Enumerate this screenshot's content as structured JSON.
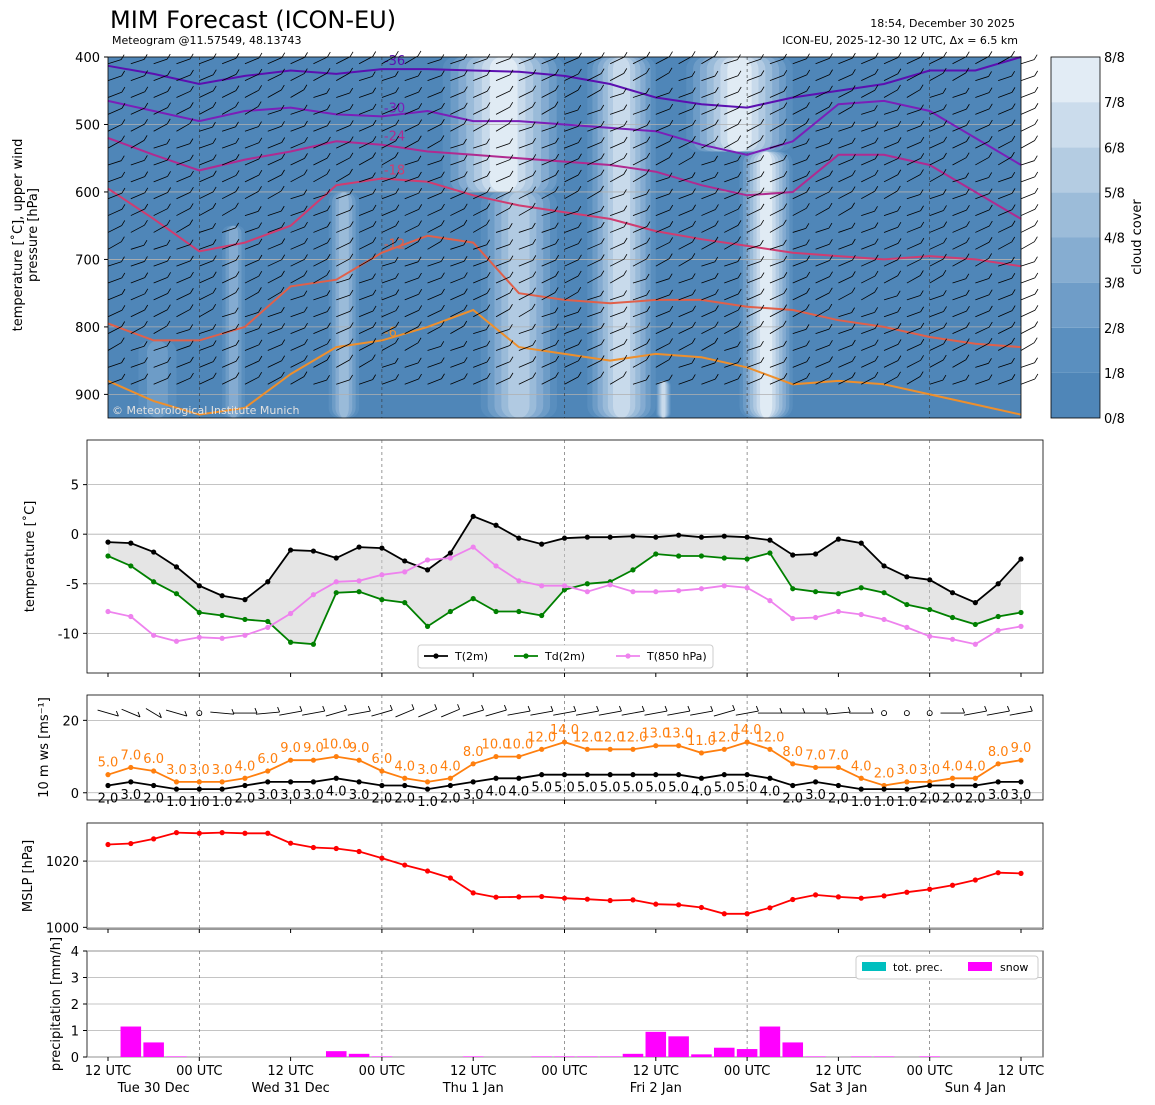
{
  "header": {
    "title": "MIM Forecast (ICON-EU)",
    "subtitle": "Meteogram @11.57549, 48.13743",
    "run_time": "18:54, December 30 2025",
    "run_info": "ICON-EU, 2025-12-30 12 UTC, Δx = 6.5 km",
    "copyright": "© Meteorological Institute Munich"
  },
  "x_axis": {
    "tick_labels": [
      "12 UTC",
      "00 UTC",
      "12 UTC",
      "00 UTC",
      "12 UTC",
      "00 UTC",
      "12 UTC",
      "00 UTC",
      "12 UTC",
      "00 UTC",
      "12 UTC"
    ],
    "tick_hours": [
      0,
      12,
      24,
      36,
      48,
      60,
      72,
      84,
      96,
      108,
      120
    ],
    "day_labels": [
      "Tue 30 Dec",
      "Wed 31 Dec",
      "Thu 1 Jan",
      "Fri 2 Jan",
      "Sat 3 Jan",
      "Sun 4 Jan"
    ],
    "day_hours": [
      6,
      24,
      48,
      72,
      96,
      114
    ]
  },
  "colors": {
    "cloud_base": "#4f86b8",
    "t2m": "#000000",
    "td2m": "#008000",
    "t850": "#ee82ee",
    "gust": "#ff7f0e",
    "mean_wind": "#000000",
    "mslp": "#ff0000",
    "tot_prec": "#00bfbf",
    "snow": "#ff00ff"
  },
  "chart_data": [
    {
      "type": "heatmap",
      "name_panel": "upper-air",
      "ylabel": "temperature [˚C], upper wind pressure [hPa]",
      "ylabel_lines": [
        "temperature [˚C], upper wind",
        "pressure [hPa]"
      ],
      "yticks": [
        400,
        500,
        600,
        700,
        800,
        900
      ],
      "ylim": [
        935,
        400
      ],
      "colorbar": {
        "label": "cloud cover",
        "ticks": [
          "0/8",
          "1/8",
          "2/8",
          "3/8",
          "4/8",
          "5/8",
          "6/8",
          "7/8",
          "8/8"
        ],
        "colors": [
          "#4f86b8",
          "#5a8fbf",
          "#6f9dc8",
          "#86add1",
          "#9cbcd9",
          "#b4cce2",
          "#cbdcec",
          "#e2ecf5",
          "#f6f9fc"
        ]
      },
      "cloud_bands": [
        {
          "h0": 29,
          "h1": 33,
          "p0": 600,
          "p1": 935,
          "level": 4
        },
        {
          "h0": 44,
          "h1": 60,
          "p0": 400,
          "p1": 600,
          "level": 7
        },
        {
          "h0": 49,
          "h1": 59,
          "p0": 600,
          "p1": 935,
          "level": 5
        },
        {
          "h0": 63,
          "h1": 72,
          "p0": 400,
          "p1": 935,
          "level": 6
        },
        {
          "h0": 72,
          "h1": 74,
          "p0": 880,
          "p1": 935,
          "level": 6
        },
        {
          "h0": 76,
          "h1": 90,
          "p0": 400,
          "p1": 540,
          "level": 7
        },
        {
          "h0": 83,
          "h1": 90,
          "p0": 540,
          "p1": 935,
          "level": 7
        },
        {
          "h0": 15,
          "h1": 18,
          "p0": 650,
          "p1": 935,
          "level": 3
        },
        {
          "h0": 4,
          "h1": 9,
          "p0": 820,
          "p1": 935,
          "level": 2
        }
      ],
      "isotherms": [
        {
          "label": "-36",
          "color": "#5b0fb0",
          "hours": [
            0,
            6,
            12,
            18,
            24,
            30,
            36,
            42,
            48,
            54,
            60,
            66,
            72,
            78,
            84,
            90,
            96,
            102,
            108,
            114,
            120
          ],
          "p": [
            413,
            425,
            440,
            428,
            420,
            425,
            418,
            418,
            420,
            422,
            428,
            440,
            460,
            470,
            475,
            460,
            450,
            440,
            420,
            420,
            400
          ]
        },
        {
          "label": "-30",
          "color": "#7a1fb8",
          "hours": [
            0,
            6,
            12,
            18,
            24,
            30,
            36,
            42,
            48,
            54,
            60,
            66,
            72,
            78,
            84,
            90,
            96,
            102,
            108,
            114,
            120
          ],
          "p": [
            465,
            480,
            495,
            480,
            475,
            485,
            488,
            480,
            495,
            495,
            500,
            505,
            510,
            530,
            545,
            525,
            470,
            465,
            480,
            520,
            560
          ]
        },
        {
          "label": "-24",
          "color": "#b02a90",
          "hours": [
            0,
            6,
            12,
            18,
            24,
            30,
            36,
            42,
            48,
            54,
            60,
            66,
            72,
            78,
            84,
            90,
            96,
            102,
            108,
            114,
            120
          ],
          "p": [
            520,
            545,
            568,
            552,
            540,
            525,
            530,
            540,
            545,
            550,
            555,
            560,
            570,
            590,
            605,
            600,
            545,
            545,
            560,
            600,
            640
          ]
        },
        {
          "label": "-18",
          "color": "#d03c70",
          "hours": [
            0,
            6,
            12,
            18,
            24,
            30,
            36,
            42,
            48,
            54,
            60,
            66,
            72,
            78,
            84,
            90,
            96,
            102,
            108,
            114,
            120
          ],
          "p": [
            595,
            640,
            688,
            675,
            650,
            590,
            580,
            585,
            605,
            620,
            630,
            640,
            658,
            670,
            680,
            690,
            695,
            700,
            695,
            700,
            710
          ]
        },
        {
          "label": "-12",
          "color": "#e0604a",
          "hours": [
            0,
            6,
            12,
            18,
            24,
            30,
            36,
            42,
            48,
            54,
            60,
            66,
            72,
            78,
            84,
            90,
            96,
            102,
            108,
            114,
            120
          ],
          "p": [
            795,
            820,
            820,
            800,
            740,
            730,
            690,
            665,
            675,
            750,
            760,
            765,
            760,
            760,
            770,
            775,
            790,
            800,
            815,
            825,
            830
          ]
        },
        {
          "label": "-6",
          "color": "#ee8f2c",
          "hours": [
            0,
            6,
            12,
            18,
            24,
            30,
            36,
            42,
            48,
            54,
            60,
            66,
            72,
            78,
            84,
            90,
            96,
            102,
            108,
            114,
            120
          ],
          "p": [
            880,
            910,
            930,
            920,
            870,
            830,
            820,
            800,
            775,
            830,
            840,
            850,
            840,
            845,
            860,
            885,
            880,
            885,
            900,
            915,
            930
          ]
        }
      ],
      "barb_pressures": [
        410,
        435,
        460,
        485,
        510,
        535,
        560,
        585,
        610,
        635,
        660,
        685,
        710,
        735,
        760,
        785,
        810,
        835,
        860,
        885
      ]
    },
    {
      "type": "line",
      "name_panel": "surface-temperature",
      "ylabel": "temperature [˚C]",
      "ylim": [
        -14,
        9.5
      ],
      "yticks": [
        -10,
        -5,
        0,
        5
      ],
      "x": [
        0,
        3,
        6,
        9,
        12,
        15,
        18,
        21,
        24,
        27,
        30,
        33,
        36,
        39,
        42,
        45,
        48,
        51,
        54,
        57,
        60,
        63,
        66,
        69,
        72,
        75,
        78,
        81,
        84,
        87,
        90,
        93,
        96,
        99,
        102,
        105,
        108,
        111,
        114,
        117,
        120
      ],
      "series": [
        {
          "name": "T(2m)",
          "color": "#000000",
          "values": [
            -0.8,
            -0.9,
            -1.8,
            -3.3,
            -5.2,
            -6.2,
            -6.6,
            -4.8,
            -1.6,
            -1.7,
            -2.4,
            -1.3,
            -1.4,
            -2.7,
            -3.6,
            -1.9,
            1.8,
            0.9,
            -0.4,
            -1.0,
            -0.4,
            -0.3,
            -0.3,
            -0.2,
            -0.3,
            -0.1,
            -0.3,
            -0.2,
            -0.3,
            -0.6,
            -2.1,
            -2.0,
            -0.5,
            -0.9,
            -3.2,
            -4.3,
            -4.6,
            -5.9,
            -6.9,
            -5.0,
            -2.5
          ]
        },
        {
          "name": "Td(2m)",
          "color": "#008000",
          "values": [
            -2.2,
            -3.2,
            -4.8,
            -6.0,
            -7.9,
            -8.2,
            -8.6,
            -8.8,
            -10.9,
            -11.1,
            -5.9,
            -5.8,
            -6.6,
            -6.9,
            -9.3,
            -7.8,
            -6.5,
            -7.8,
            -7.8,
            -8.2,
            -5.6,
            -5.0,
            -4.8,
            -3.6,
            -2.0,
            -2.2,
            -2.2,
            -2.4,
            -2.5,
            -1.9,
            -5.5,
            -5.8,
            -6.0,
            -5.4,
            -5.9,
            -7.1,
            -7.6,
            -8.4,
            -9.1,
            -8.3,
            -7.9
          ]
        },
        {
          "name": "T(850 hPa)",
          "color": "#ee82ee",
          "values": [
            -7.8,
            -8.3,
            -10.2,
            -10.8,
            -10.4,
            -10.5,
            -10.2,
            -9.4,
            -8.0,
            -6.1,
            -4.8,
            -4.7,
            -4.1,
            -3.8,
            -2.6,
            -2.4,
            -1.3,
            -3.2,
            -4.7,
            -5.2,
            -5.2,
            -5.8,
            -5.1,
            -5.8,
            -5.8,
            -5.7,
            -5.5,
            -5.2,
            -5.4,
            -6.7,
            -8.5,
            -8.4,
            -7.8,
            -8.1,
            -8.6,
            -9.4,
            -10.3,
            -10.6,
            -11.1,
            -9.7,
            -9.3
          ]
        }
      ]
    },
    {
      "type": "line",
      "name_panel": "wind",
      "ylabel": "10 m ws [ms⁻¹]",
      "ylim": [
        -2,
        27
      ],
      "yticks": [
        0,
        20
      ],
      "x": [
        0,
        3,
        6,
        9,
        12,
        15,
        18,
        21,
        24,
        27,
        30,
        33,
        36,
        39,
        42,
        45,
        48,
        51,
        54,
        57,
        60,
        63,
        66,
        69,
        72,
        75,
        78,
        81,
        84,
        87,
        90,
        93,
        96,
        99,
        102,
        105,
        108,
        111,
        114,
        117,
        120
      ],
      "series": [
        {
          "name": "gust",
          "color": "#ff7f0e",
          "values": [
            5.0,
            7.0,
            6.0,
            3.0,
            3.0,
            3.0,
            4.0,
            6.0,
            9.0,
            9.0,
            10.0,
            9.0,
            6.0,
            4.0,
            3.0,
            4.0,
            8.0,
            10.0,
            10.0,
            12.0,
            14.0,
            12.0,
            12.0,
            12.0,
            13.0,
            13.0,
            11.0,
            12.0,
            14.0,
            12.0,
            8.0,
            7.0,
            7.0,
            4.0,
            2.0,
            3.0,
            3.0,
            4.0,
            4.0,
            8.0,
            9.0
          ]
        },
        {
          "name": "mean",
          "color": "#000000",
          "values": [
            2.0,
            3.0,
            2.0,
            1.0,
            1.0,
            1.0,
            2.0,
            3.0,
            3.0,
            3.0,
            4.0,
            3.0,
            2.0,
            2.0,
            1.0,
            2.0,
            3.0,
            4.0,
            4.0,
            5.0,
            5.0,
            5.0,
            5.0,
            5.0,
            5.0,
            5.0,
            4.0,
            5.0,
            5.0,
            4.0,
            2.0,
            3.0,
            2.0,
            1.0,
            1.0,
            1.0,
            2.0,
            2.0,
            2.0,
            3.0,
            3.0
          ]
        }
      ],
      "gust_labels": [
        "5.0",
        "7.0",
        "6.0",
        "3.0",
        "3.0",
        "3.0",
        "4.0",
        "6.0",
        "9.0",
        "9.0",
        "10.0",
        "9.0",
        "6.0",
        "4.0",
        "3.0",
        "4.0",
        "8.0",
        "10.0",
        "10.0",
        "12.0",
        "14.0",
        "12.0",
        "12.0",
        "12.0",
        "13.0",
        "13.0",
        "11.0",
        "12.0",
        "14.0",
        "12.0",
        "8.0",
        "7.0",
        "7.0",
        "4.0",
        "2.0",
        "3.0",
        "3.0",
        "4.0",
        "4.0",
        "8.0",
        "9.0"
      ],
      "mean_labels": [
        "2.0",
        "3.0",
        "2.0",
        "1.0",
        "1.0",
        "1.0",
        "2.0",
        "3.0",
        "3.0",
        "3.0",
        "4.0",
        "3.0",
        "2.0",
        "2.0",
        "1.0",
        "2.0",
        "3.0",
        "4.0",
        "4.0",
        "5.0",
        "5.0",
        "5.0",
        "5.0",
        "5.0",
        "5.0",
        "5.0",
        "4.0",
        "5.0",
        "5.0",
        "4.0",
        "2.0",
        "3.0",
        "2.0",
        "1.0",
        "1.0",
        "1.0",
        "2.0",
        "2.0",
        "2.0",
        "3.0",
        "3.0"
      ],
      "barb_dirs": [
        300,
        310,
        320,
        300,
        "calm",
        280,
        270,
        260,
        250,
        250,
        240,
        250,
        240,
        230,
        230,
        230,
        240,
        240,
        250,
        250,
        250,
        250,
        250,
        250,
        250,
        250,
        250,
        240,
        250,
        270,
        270,
        270,
        260,
        270,
        "calm",
        "calm",
        "calm",
        270,
        250,
        250,
        250
      ],
      "barb_speeds": [
        2,
        3,
        2,
        1,
        1,
        1,
        2,
        3,
        3,
        3,
        4,
        3,
        2,
        2,
        1,
        2,
        3,
        4,
        4,
        5,
        5,
        5,
        5,
        5,
        5,
        5,
        4,
        5,
        5,
        4,
        2,
        3,
        2,
        1,
        1,
        1,
        2,
        2,
        2,
        3,
        3
      ]
    },
    {
      "type": "line",
      "name_panel": "mslp",
      "ylabel": "MSLP [hPa]",
      "ylim": [
        999.5,
        1031.5
      ],
      "yticks": [
        1000,
        1020
      ],
      "x": [
        0,
        3,
        6,
        9,
        12,
        15,
        18,
        21,
        24,
        27,
        30,
        33,
        36,
        39,
        42,
        45,
        48,
        51,
        54,
        57,
        60,
        63,
        66,
        69,
        72,
        75,
        78,
        81,
        84,
        87,
        90,
        93,
        96,
        99,
        102,
        105,
        108,
        111,
        114,
        117,
        120
      ],
      "series": [
        {
          "name": "MSLP",
          "color": "#ff0000",
          "values": [
            1025.0,
            1025.3,
            1026.7,
            1028.6,
            1028.4,
            1028.6,
            1028.4,
            1028.4,
            1025.4,
            1024.1,
            1023.8,
            1022.9,
            1020.9,
            1018.8,
            1017.0,
            1014.9,
            1010.4,
            1009.1,
            1009.2,
            1009.3,
            1008.8,
            1008.5,
            1008.1,
            1008.3,
            1007.0,
            1006.8,
            1006.0,
            1004.1,
            1004.1,
            1005.9,
            1008.4,
            1009.8,
            1009.2,
            1008.8,
            1009.5,
            1010.6,
            1011.5,
            1012.7,
            1014.3,
            1016.5,
            1016.3
          ]
        }
      ]
    },
    {
      "type": "bar",
      "name_panel": "precipitation",
      "ylabel": "precipitation [mm/h]",
      "ylim": [
        0,
        4
      ],
      "yticks": [
        0,
        1,
        2,
        3,
        4
      ],
      "x": [
        0,
        3,
        6,
        9,
        12,
        15,
        18,
        21,
        24,
        27,
        30,
        33,
        36,
        39,
        42,
        45,
        48,
        51,
        54,
        57,
        60,
        63,
        66,
        69,
        72,
        75,
        78,
        81,
        84,
        87,
        90,
        93,
        96,
        99,
        102,
        105,
        108,
        111,
        114,
        117,
        120
      ],
      "legend": [
        "tot. prec.",
        "snow"
      ],
      "series": [
        {
          "name": "snow",
          "color": "#ff00ff",
          "values": [
            0,
            1.15,
            0.55,
            0.02,
            0,
            0,
            0,
            0,
            0,
            0,
            0.22,
            0.12,
            0.02,
            0,
            0,
            0,
            0.02,
            0,
            0,
            0.02,
            0.02,
            0.02,
            0.02,
            0.12,
            0.95,
            0.78,
            0.1,
            0.35,
            0.3,
            1.15,
            0.55,
            0.02,
            0,
            0.02,
            0.02,
            0,
            0.02,
            0,
            0,
            0,
            0
          ]
        }
      ]
    }
  ]
}
